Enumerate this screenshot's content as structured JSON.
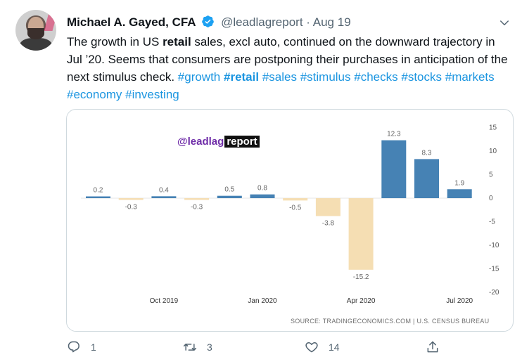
{
  "tweet": {
    "author_name": "Michael A. Gayed, CFA",
    "handle": "@leadlagreport",
    "separator": "·",
    "date": "Aug 19",
    "text_parts": [
      {
        "t": "The growth in US ",
        "k": "plain"
      },
      {
        "t": "retail",
        "k": "bold"
      },
      {
        "t": " sales, excl auto, continued on the downward trajectory in Jul ’20. Seems that consumers are postponing their purchases in anticipation of the next stimulus check. ",
        "k": "plain"
      },
      {
        "t": "#growth",
        "k": "tag"
      },
      {
        "t": " ",
        "k": "plain"
      },
      {
        "t": "#retail",
        "k": "tagbold"
      },
      {
        "t": " ",
        "k": "plain"
      },
      {
        "t": "#sales",
        "k": "tag"
      },
      {
        "t": " ",
        "k": "plain"
      },
      {
        "t": "#stimulus",
        "k": "tag"
      },
      {
        "t": " ",
        "k": "plain"
      },
      {
        "t": "#checks",
        "k": "tag"
      },
      {
        "t": " ",
        "k": "plain"
      },
      {
        "t": "#stocks",
        "k": "tag"
      },
      {
        "t": " ",
        "k": "plain"
      },
      {
        "t": "#markets",
        "k": "tag"
      },
      {
        "t": " ",
        "k": "plain"
      },
      {
        "t": "#economy",
        "k": "tag"
      },
      {
        "t": " ",
        "k": "plain"
      },
      {
        "t": "#investing",
        "k": "tag"
      }
    ]
  },
  "watermark": {
    "prefix": "@leadlag",
    "suffix": "report"
  },
  "source_text": "SOURCE: TRADINGECONOMICS.COM | U.S. CENSUS BUREAU",
  "actions": {
    "reply_count": "1",
    "retweet_count": "3",
    "like_count": "14"
  },
  "icons": {
    "verified": "verified-badge-icon",
    "more": "chevron-down-icon",
    "reply": "reply-icon",
    "retweet": "retweet-icon",
    "like": "heart-icon",
    "share": "share-icon"
  },
  "colors": {
    "positive_bar": "#4682b4",
    "negative_bar": "#f5deb3",
    "link": "#1b95e0",
    "verified": "#1da1f2"
  },
  "chart_data": {
    "type": "bar",
    "categories": [
      "Aug 2019",
      "Sep 2019",
      "Oct 2019",
      "Nov 2019",
      "Dec 2019",
      "Jan 2020",
      "Feb 2020",
      "Mar 2020",
      "Apr 2020",
      "May 2020",
      "Jun 2020",
      "Jul 2020"
    ],
    "values": [
      0.2,
      -0.3,
      0.4,
      -0.3,
      0.5,
      0.8,
      -0.5,
      -3.8,
      -15.2,
      12.3,
      8.3,
      1.9
    ],
    "value_labels": [
      "0.2",
      "-0.3",
      "0.4",
      "-0.3",
      "0.5",
      "0.8",
      "-0.5",
      "-3.8",
      "-15.2",
      "12.3",
      "8.3",
      "1.9"
    ],
    "x_tick_labels": [
      {
        "index": 2,
        "label": "Oct 2019"
      },
      {
        "index": 5,
        "label": "Jan 2020"
      },
      {
        "index": 8,
        "label": "Apr 2020"
      },
      {
        "index": 11,
        "label": "Jul 2020"
      }
    ],
    "y_ticks": [
      15,
      10,
      5,
      0,
      -5,
      -10,
      -15,
      -20
    ],
    "y_tick_labels": [
      "15",
      "10",
      "5",
      "0",
      "-5",
      "-10",
      "-15",
      "-20"
    ],
    "ylim": [
      -20,
      15
    ],
    "y_axis_side": "right",
    "grid": false,
    "title": "",
    "xlabel": "",
    "ylabel": ""
  }
}
